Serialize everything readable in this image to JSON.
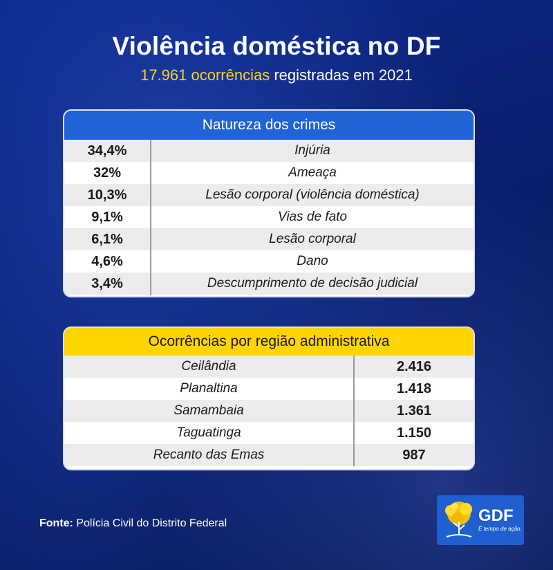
{
  "header": {
    "title": "Violência doméstica no DF",
    "subtitle_highlight": "17.961 ocorrências",
    "subtitle_rest": " registradas em 2021"
  },
  "crimes": {
    "heading": "Natureza dos crimes",
    "rows": [
      {
        "pct": "34,4%",
        "label": "Injúria"
      },
      {
        "pct": "32%",
        "label": "Ameaça"
      },
      {
        "pct": "10,3%",
        "label": "Lesão corporal (violência doméstica)"
      },
      {
        "pct": "9,1%",
        "label": "Vias de fato"
      },
      {
        "pct": "6,1%",
        "label": "Lesão corporal"
      },
      {
        "pct": "4,6%",
        "label": "Dano"
      },
      {
        "pct": "3,4%",
        "label": "Descumprimento de decisão judicial"
      }
    ]
  },
  "regions": {
    "heading": "Ocorrências por região administrativa",
    "rows": [
      {
        "name": "Ceilândia",
        "count": "2.416"
      },
      {
        "name": "Planaltina",
        "count": "1.418"
      },
      {
        "name": "Samambaia",
        "count": "1.361"
      },
      {
        "name": "Taguatinga",
        "count": "1.150"
      },
      {
        "name": "Recanto das Emas",
        "count": "987"
      }
    ]
  },
  "source": {
    "label": "Fonte:",
    "text": " Polícia Civil do Distrito Federal"
  },
  "logo": {
    "name": "GDF",
    "slogan": "É tempo de ação.",
    "icon": "ipe-tree-icon"
  },
  "colors": {
    "blue_header": "#1f63d6",
    "yellow_header": "#ffd400",
    "highlight": "#ffd21c"
  }
}
